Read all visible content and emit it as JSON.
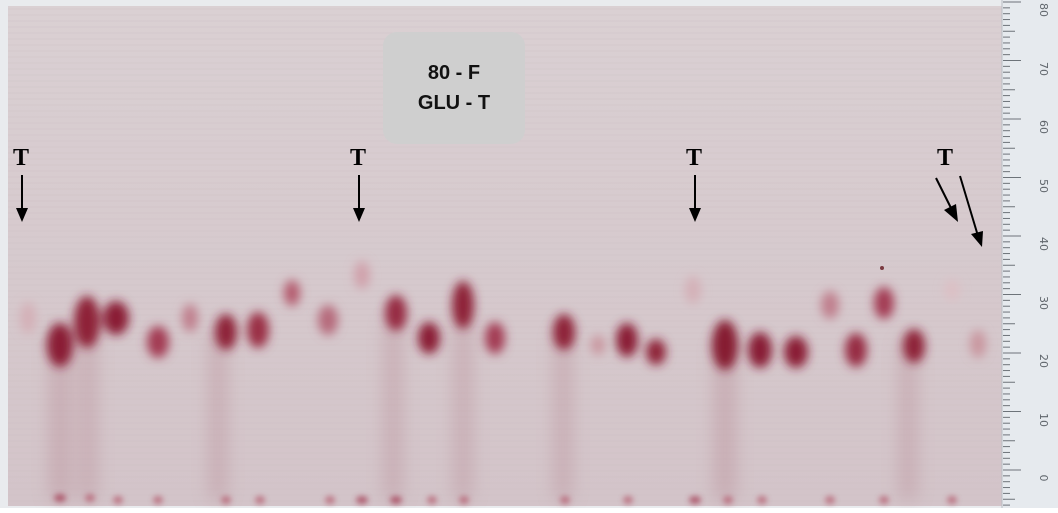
{
  "label": {
    "line1": "80 - F",
    "line2": "GLU - T"
  },
  "markers": [
    "T",
    "T",
    "T",
    "T"
  ],
  "ruler_ticks": [
    "80",
    "70",
    "60",
    "50",
    "40",
    "30",
    "20",
    "10",
    "0"
  ],
  "colors": {
    "plate": "#d8cccf",
    "spot": "#8a1a34",
    "label_box": "#cfcfcf",
    "ruler": "#e6eaee"
  }
}
